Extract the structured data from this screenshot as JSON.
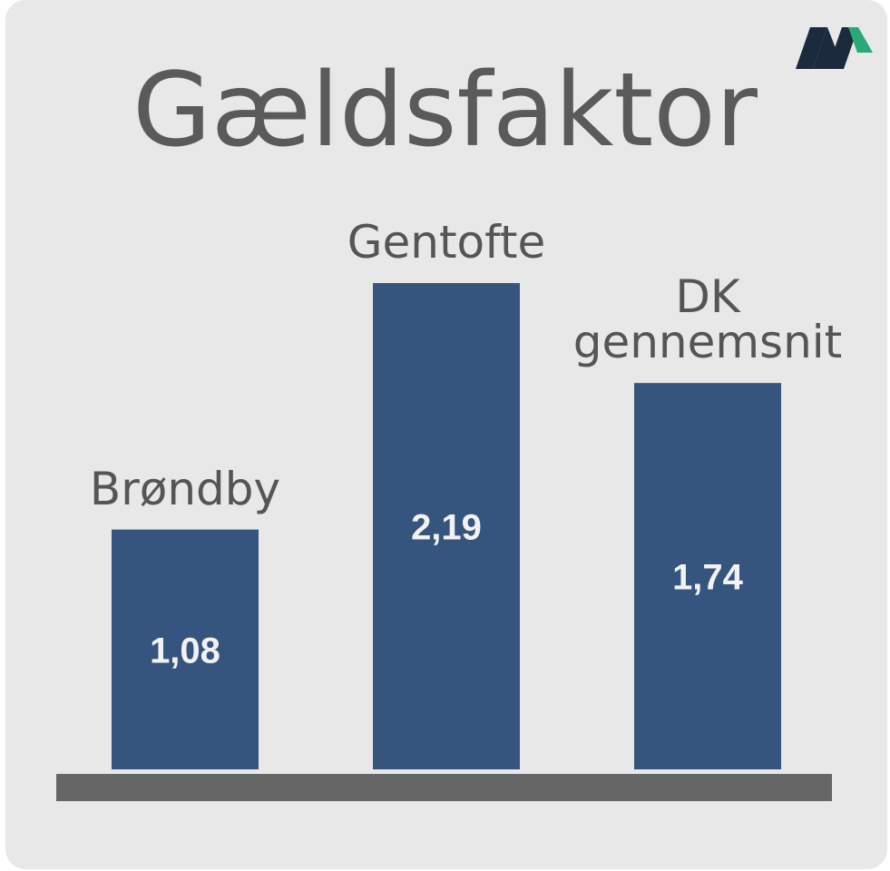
{
  "chart_data": {
    "type": "bar",
    "title": "Gældsfaktor",
    "categories": [
      "Brøndby",
      "Gentofte",
      "DK gennemsnit"
    ],
    "values": [
      1.08,
      2.19,
      1.74
    ],
    "value_labels": [
      "1,08",
      "2,19",
      "1,74"
    ],
    "color": "#36557e"
  }
}
